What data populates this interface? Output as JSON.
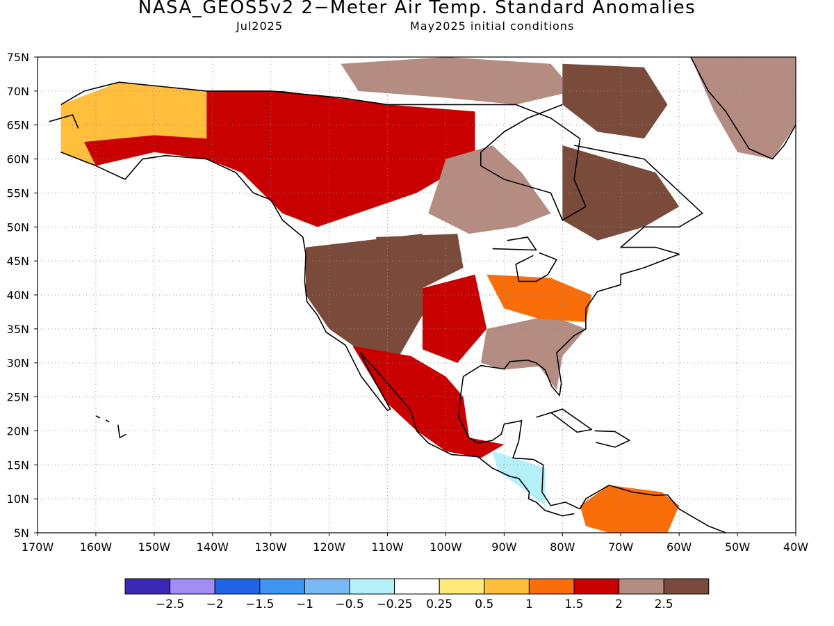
{
  "title": "NASA_GEOS5v2 2−Meter Air Temp. Standard Anomalies",
  "valid_month": "Jul2025",
  "init_conditions": "May2025 initial conditions",
  "map": {
    "lon_range": [
      -170,
      -40
    ],
    "lat_range": [
      5,
      75
    ],
    "lat_labels": [
      "75N",
      "70N",
      "65N",
      "60N",
      "55N",
      "50N",
      "45N",
      "40N",
      "35N",
      "30N",
      "25N",
      "20N",
      "15N",
      "10N",
      "5N"
    ],
    "lon_labels": [
      "170W",
      "160W",
      "150W",
      "140W",
      "130W",
      "120W",
      "110W",
      "100W",
      "90W",
      "80W",
      "70W",
      "60W",
      "50W",
      "40W"
    ],
    "grid": "dotted",
    "regions": [
      {
        "name": "alaska",
        "level": 0.5
      },
      {
        "name": "alaska-south-coast",
        "level": 1.5
      },
      {
        "name": "yukon-nwt",
        "level": 1.5
      },
      {
        "name": "arctic-islands",
        "level": 2.0
      },
      {
        "name": "hudson-bay-region",
        "level": 2.0
      },
      {
        "name": "quebec",
        "level": 2.5
      },
      {
        "name": "baffin-island",
        "level": 2.5
      },
      {
        "name": "greenland",
        "level": 2.0
      },
      {
        "name": "us-west-interior",
        "level": 2.5
      },
      {
        "name": "us-northern-plains",
        "level": 2.5
      },
      {
        "name": "us-great-plains",
        "level": 1.5
      },
      {
        "name": "us-southeast",
        "level": 2.0
      },
      {
        "name": "us-ohio-valley",
        "level": 1.0
      },
      {
        "name": "mexico",
        "level": 1.5
      },
      {
        "name": "central-america",
        "level": -0.5
      },
      {
        "name": "northern-south-america",
        "level": 1.0
      }
    ]
  },
  "colorbar": {
    "colors": [
      "#3c28b4",
      "#a28cf6",
      "#1e64e6",
      "#3c96f0",
      "#78b9f6",
      "#b4f0fa",
      "#ffffff",
      "#ffe978",
      "#ffbe3c",
      "#fa6e0a",
      "#c80000",
      "#b48c82",
      "#7a4a3a"
    ],
    "labels": [
      "−2.5",
      "−2",
      "−1.5",
      "−1",
      "−0.5",
      "−0.25",
      "0.25",
      "0.5",
      "1",
      "1.5",
      "2",
      "2.5"
    ]
  }
}
